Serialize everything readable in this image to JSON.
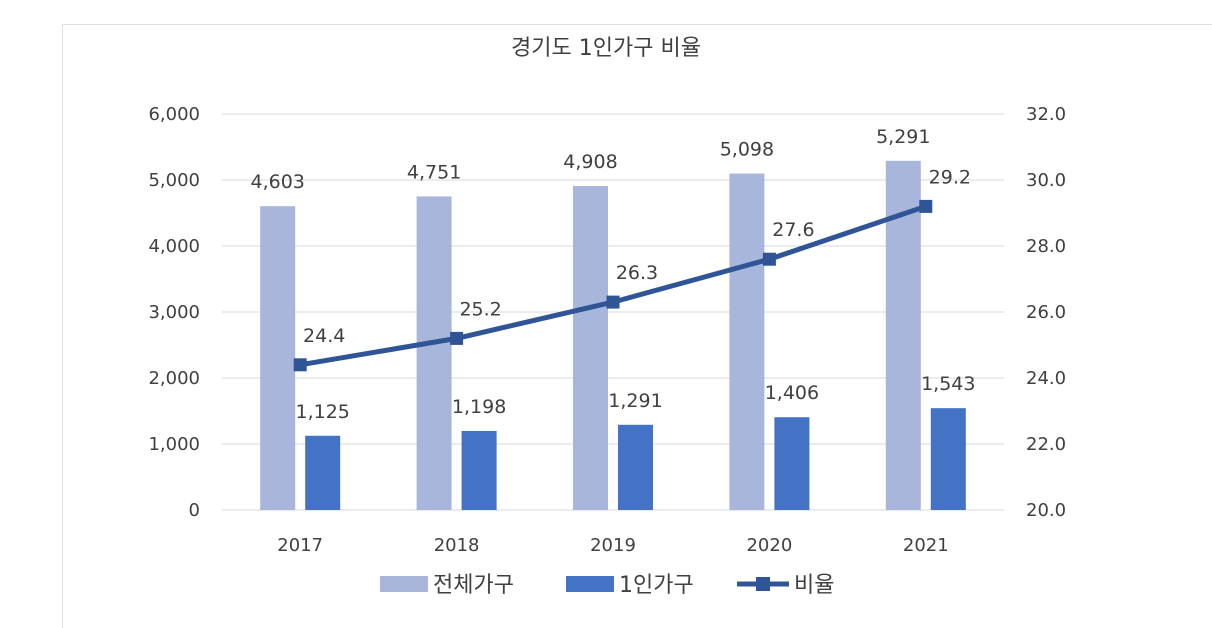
{
  "chart_data": {
    "type": "bar",
    "title": "경기도 1인가구 비율",
    "categories": [
      "2017",
      "2018",
      "2019",
      "2020",
      "2021"
    ],
    "series": [
      {
        "name": "전체가구",
        "type": "bar",
        "axis": "left",
        "color": "#A9B6DC",
        "values": [
          4603,
          4751,
          4908,
          5098,
          5291
        ],
        "labels": [
          "4,603",
          "4,751",
          "4,908",
          "5,098",
          "5,291"
        ]
      },
      {
        "name": "1인가구",
        "type": "bar",
        "axis": "left",
        "color": "#4472C4",
        "values": [
          1125,
          1198,
          1291,
          1406,
          1543
        ],
        "labels": [
          "1,125",
          "1,198",
          "1,291",
          "1,406",
          "1,543"
        ]
      },
      {
        "name": "비율",
        "type": "line",
        "axis": "right",
        "color": "#2F5597",
        "marker": "square",
        "values": [
          24.4,
          25.2,
          26.3,
          27.6,
          29.2
        ],
        "labels": [
          "24.4",
          "25.2",
          "26.3",
          "27.6",
          "29.2"
        ]
      }
    ],
    "y_left": {
      "min": 0,
      "max": 6000,
      "ticks": [
        "0",
        "1,000",
        "2,000",
        "3,000",
        "4,000",
        "5,000",
        "6,000"
      ]
    },
    "y_right": {
      "min": 20,
      "max": 32,
      "ticks": [
        "20.0",
        "22.0",
        "24.0",
        "26.0",
        "28.0",
        "30.0",
        "32.0"
      ]
    },
    "grid": true,
    "legend_position": "bottom"
  }
}
